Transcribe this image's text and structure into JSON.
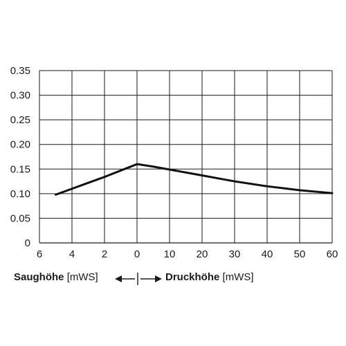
{
  "chart_data": {
    "type": "line",
    "title": "",
    "x_axis": {
      "type": "two-segment",
      "left_segment": {
        "label": "Saughöhe",
        "unit": "[mWS]",
        "ticks": [
          "6",
          "4",
          "2",
          "0"
        ],
        "range": [
          6,
          0
        ]
      },
      "right_segment": {
        "label": "Druckhöhe",
        "unit": "[mWS]",
        "ticks": [
          "0",
          "10",
          "20",
          "30",
          "40",
          "50",
          "60"
        ],
        "range": [
          0,
          60
        ]
      }
    },
    "y_axis": {
      "ticks": [
        "0",
        "0.05",
        "0.10",
        "0.15",
        "0.20",
        "0.25",
        "0.30",
        "0.35"
      ],
      "ylim": [
        0,
        0.35
      ]
    },
    "grid": true,
    "legend": "none",
    "series": [
      {
        "color": "#111111",
        "points": [
          {
            "segment": "saug",
            "x": 5,
            "y": 0.098
          },
          {
            "segment": "saug",
            "x": 4,
            "y": 0.11
          },
          {
            "segment": "saug",
            "x": 3,
            "y": 0.122
          },
          {
            "segment": "saug",
            "x": 2,
            "y": 0.134
          },
          {
            "segment": "saug",
            "x": 1,
            "y": 0.147
          },
          {
            "segment": "saug",
            "x": 0,
            "y": 0.16
          },
          {
            "segment": "druck",
            "x": 5,
            "y": 0.155
          },
          {
            "segment": "druck",
            "x": 10,
            "y": 0.149
          },
          {
            "segment": "druck",
            "x": 15,
            "y": 0.143
          },
          {
            "segment": "druck",
            "x": 20,
            "y": 0.137
          },
          {
            "segment": "druck",
            "x": 25,
            "y": 0.131
          },
          {
            "segment": "druck",
            "x": 30,
            "y": 0.125
          },
          {
            "segment": "druck",
            "x": 35,
            "y": 0.12
          },
          {
            "segment": "druck",
            "x": 40,
            "y": 0.115
          },
          {
            "segment": "druck",
            "x": 45,
            "y": 0.111
          },
          {
            "segment": "druck",
            "x": 50,
            "y": 0.107
          },
          {
            "segment": "druck",
            "x": 55,
            "y": 0.104
          },
          {
            "segment": "druck",
            "x": 60,
            "y": 0.101
          }
        ]
      }
    ]
  }
}
